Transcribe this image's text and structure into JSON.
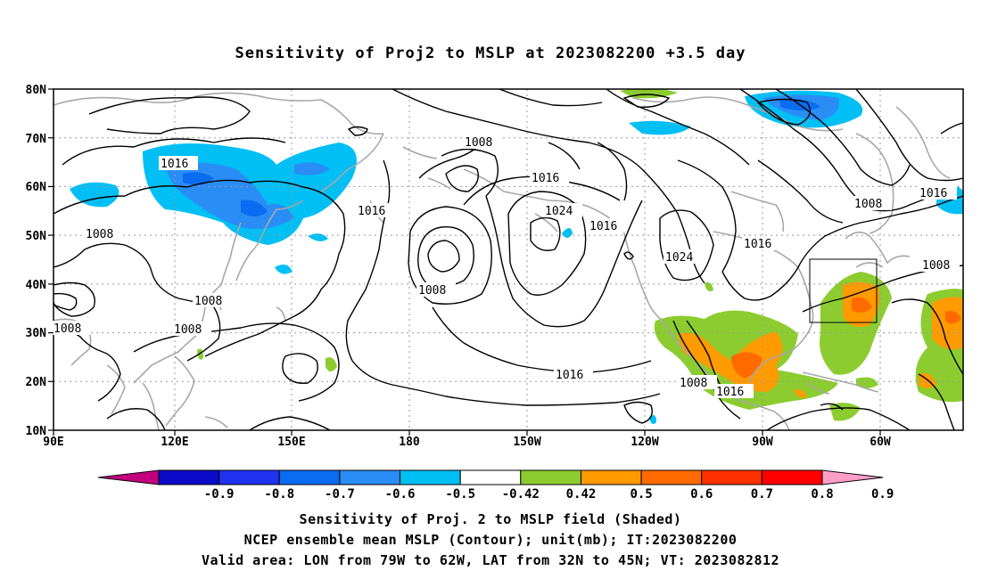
{
  "title": "Sensitivity of Proj2 to MSLP at 2023082200 +3.5 day",
  "map": {
    "lat_labels": [
      "80N",
      "70N",
      "60N",
      "50N",
      "40N",
      "30N",
      "20N",
      "10N"
    ],
    "lon_labels": [
      "90E",
      "120E",
      "150E",
      "180",
      "150W",
      "120W",
      "90W",
      "60W"
    ],
    "contour_labels": [
      {
        "text": "1016"
      },
      {
        "text": "1008"
      },
      {
        "text": "1016"
      },
      {
        "text": "1016"
      },
      {
        "text": "1008"
      },
      {
        "text": "1024"
      },
      {
        "text": "1016"
      },
      {
        "text": "1024"
      },
      {
        "text": "1016"
      },
      {
        "text": "1008"
      },
      {
        "text": "1016"
      },
      {
        "text": "1008"
      },
      {
        "text": "1008"
      },
      {
        "text": "1008"
      },
      {
        "text": "1008"
      },
      {
        "text": "1016"
      },
      {
        "text": "1008"
      },
      {
        "text": "1016"
      },
      {
        "text": "1008"
      }
    ]
  },
  "colorbar": {
    "labels": [
      "-0.9",
      "-0.8",
      "-0.7",
      "-0.6",
      "-0.5",
      "-0.42",
      "0.42",
      "0.5",
      "0.6",
      "0.7",
      "0.8",
      "0.9"
    ],
    "colors": [
      "#c2007f",
      "#0a0ac8",
      "#1e32f0",
      "#0a6cf0",
      "#2a8cf5",
      "#00bff5",
      "#ffffff",
      "#8ccc30",
      "#ff9a00",
      "#ff6a00",
      "#ff3000",
      "#ff0000",
      "#ff9ec8"
    ]
  },
  "captions": {
    "line1": "Sensitivity of Proj. 2 to MSLP field (Shaded)",
    "line2": "NCEP ensemble mean MSLP (Contour); unit(mb); IT:2023082200",
    "line3": "Valid area: LON from 79W to 62W, LAT from 32N to 45N; VT: 2023082812"
  }
}
